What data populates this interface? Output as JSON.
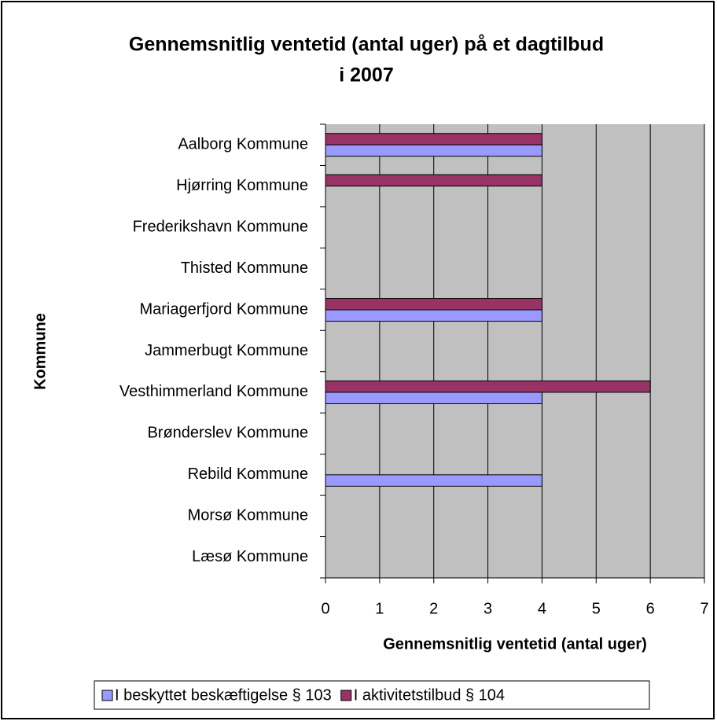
{
  "chart_data": {
    "type": "hbar",
    "title": [
      "Gennemsnitlig ventetid (antal uger) på et dagtilbud",
      "i 2007"
    ],
    "xlabel": "Gennemsnitlig ventetid (antal uger)",
    "ylabel": "Kommune",
    "categories": [
      "Aalborg Kommune",
      "Hjørring Kommune",
      "Frederikshavn Kommune",
      "Thisted Kommune",
      "Mariagerfjord Kommune",
      "Jammerbugt Kommune",
      "Vesthimmerland Kommune",
      "Brønderslev Kommune",
      "Rebild Kommune",
      "Morsø Kommune",
      "Læsø Kommune"
    ],
    "series": [
      {
        "name": "I beskyttet beskæftigelse § 103",
        "color": "#9999ff",
        "values": [
          4,
          null,
          null,
          null,
          4,
          null,
          4,
          null,
          4,
          null,
          null
        ]
      },
      {
        "name": "I aktivitetstilbud § 104",
        "color": "#993366",
        "values": [
          4,
          4,
          null,
          null,
          4,
          null,
          6,
          null,
          null,
          null,
          null
        ]
      }
    ],
    "xlim": [
      0,
      7
    ],
    "xticks": [
      0,
      1,
      2,
      3,
      4,
      5,
      6,
      7
    ],
    "grid": true,
    "legend": "bottom",
    "plot_background": "#c0c0c0"
  }
}
